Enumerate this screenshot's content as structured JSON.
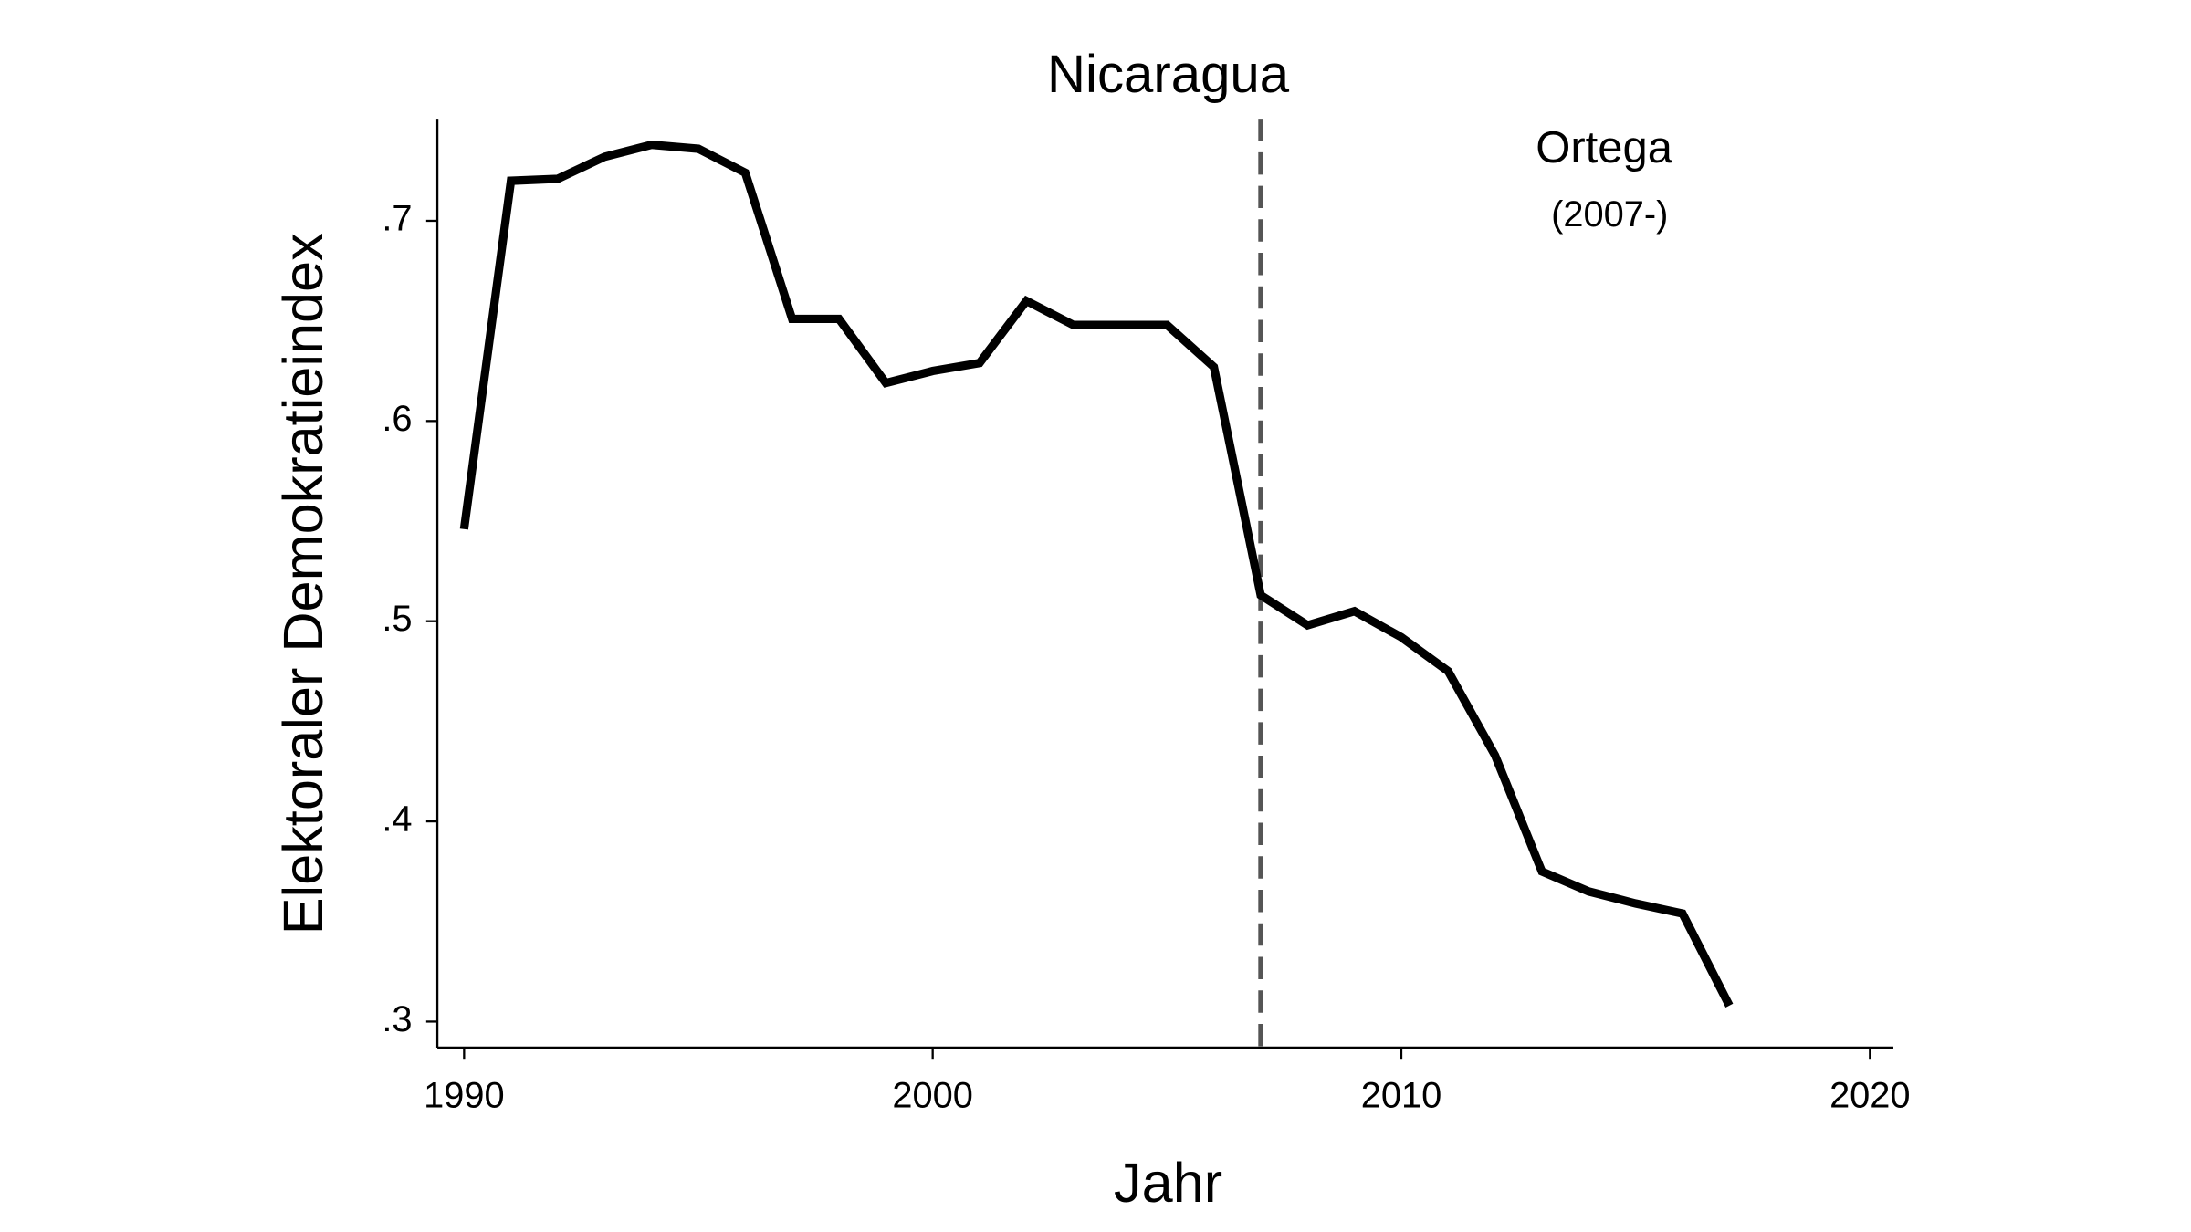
{
  "chart_data": {
    "type": "line",
    "title": "Nicaragua",
    "x_label": "Jahr",
    "y_label": "Elektoraler Demokratieindex",
    "x": [
      1990,
      1991,
      1992,
      1993,
      1994,
      1995,
      1996,
      1997,
      1998,
      1999,
      2000,
      2001,
      2002,
      2003,
      2004,
      2005,
      2006,
      2007,
      2008,
      2009,
      2010,
      2011,
      2012,
      2013,
      2014,
      2015,
      2016,
      2017
    ],
    "series": [
      {
        "name": "Nicaragua",
        "color": "#000000",
        "values": [
          0.546,
          0.72,
          0.721,
          0.732,
          0.738,
          0.736,
          0.724,
          0.651,
          0.651,
          0.619,
          0.625,
          0.629,
          0.66,
          0.648,
          0.648,
          0.648,
          0.627,
          0.513,
          0.498,
          0.505,
          0.492,
          0.475,
          0.433,
          0.375,
          0.365,
          0.359,
          0.354,
          0.308
        ]
      }
    ],
    "xlim": [
      1989.43,
      2020.5
    ],
    "ylim": [
      0.287,
      0.751
    ],
    "xticks": [
      1990,
      2000,
      2010,
      2020
    ],
    "yticks": [
      {
        "value": 0.3,
        "label": ".3"
      },
      {
        "value": 0.4,
        "label": ".4"
      },
      {
        "value": 0.5,
        "label": ".5"
      },
      {
        "value": 0.6,
        "label": ".6"
      },
      {
        "value": 0.7,
        "label": ".7"
      }
    ],
    "vline": {
      "x": 2007,
      "color": "#555555"
    },
    "annotations": [
      "Ortega",
      "(2007-)"
    ],
    "grid": false
  }
}
